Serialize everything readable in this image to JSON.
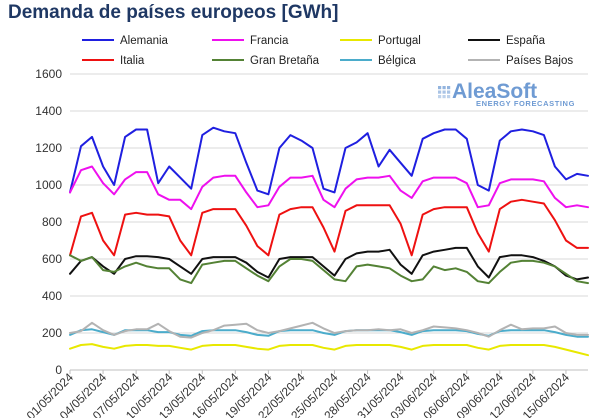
{
  "chart_data": {
    "type": "line",
    "title": "Demanda de países europeos [GWh]",
    "xlabel": "",
    "ylabel": "",
    "ylim": [
      0,
      1600
    ],
    "yticks": [
      0,
      200,
      400,
      600,
      800,
      1000,
      1200,
      1400,
      1600
    ],
    "grid": true,
    "legend_placement": "top",
    "x_tick_labels": [
      "01/05/2024",
      "04/05/2024",
      "07/05/2024",
      "10/05/2024",
      "13/05/2024",
      "16/05/2024",
      "19/05/2024",
      "22/05/2024",
      "25/05/2024",
      "28/05/2024",
      "31/05/2024",
      "03/06/2024",
      "06/06/2024",
      "09/06/2024",
      "12/06/2024",
      "15/06/2024"
    ],
    "x": [
      "01/05/2024",
      "02/05/2024",
      "03/05/2024",
      "04/05/2024",
      "05/05/2024",
      "06/05/2024",
      "07/05/2024",
      "08/05/2024",
      "09/05/2024",
      "10/05/2024",
      "11/05/2024",
      "12/05/2024",
      "13/05/2024",
      "14/05/2024",
      "15/05/2024",
      "16/05/2024",
      "17/05/2024",
      "18/05/2024",
      "19/05/2024",
      "20/05/2024",
      "21/05/2024",
      "22/05/2024",
      "23/05/2024",
      "24/05/2024",
      "25/05/2024",
      "26/05/2024",
      "27/05/2024",
      "28/05/2024",
      "29/05/2024",
      "30/05/2024",
      "31/05/2024",
      "01/06/2024",
      "02/06/2024",
      "03/06/2024",
      "04/06/2024",
      "05/06/2024",
      "06/06/2024",
      "07/06/2024",
      "08/06/2024",
      "09/06/2024",
      "10/06/2024",
      "11/06/2024",
      "12/06/2024",
      "13/06/2024",
      "14/06/2024",
      "15/06/2024",
      "16/06/2024",
      "17/06/2024"
    ],
    "series": [
      {
        "name": "Alemania",
        "color": "#1f1fe0",
        "values": [
          960,
          1210,
          1260,
          1100,
          1000,
          1260,
          1300,
          1300,
          1010,
          1100,
          1040,
          980,
          1270,
          1310,
          1290,
          1280,
          1120,
          970,
          950,
          1200,
          1270,
          1240,
          1200,
          980,
          960,
          1200,
          1230,
          1280,
          1100,
          1190,
          1120,
          1050,
          1250,
          1280,
          1300,
          1300,
          1250,
          1000,
          970,
          1240,
          1290,
          1300,
          1290,
          1270,
          1100,
          1030,
          1060,
          1050
        ]
      },
      {
        "name": "Francia",
        "color": "#ee10ee",
        "values": [
          960,
          1080,
          1100,
          1010,
          950,
          1030,
          1070,
          1070,
          950,
          920,
          920,
          870,
          990,
          1040,
          1050,
          1050,
          960,
          880,
          890,
          990,
          1040,
          1040,
          1050,
          920,
          880,
          980,
          1030,
          1040,
          1040,
          1050,
          970,
          930,
          1020,
          1040,
          1040,
          1040,
          1010,
          880,
          890,
          1010,
          1030,
          1030,
          1030,
          1020,
          930,
          880,
          890,
          880
        ]
      },
      {
        "name": "Portugal",
        "color": "#e8e800",
        "values": [
          115,
          135,
          140,
          125,
          115,
          130,
          135,
          135,
          130,
          130,
          120,
          110,
          130,
          135,
          135,
          135,
          125,
          115,
          110,
          130,
          135,
          135,
          135,
          120,
          110,
          130,
          135,
          135,
          135,
          135,
          125,
          110,
          130,
          135,
          135,
          135,
          135,
          120,
          110,
          130,
          135,
          135,
          135,
          135,
          125,
          110,
          95,
          80
        ]
      },
      {
        "name": "España",
        "color": "#111111",
        "values": [
          520,
          590,
          610,
          560,
          520,
          600,
          615,
          615,
          610,
          600,
          560,
          520,
          600,
          610,
          610,
          610,
          580,
          530,
          500,
          600,
          610,
          610,
          610,
          560,
          510,
          600,
          630,
          640,
          640,
          650,
          570,
          520,
          620,
          640,
          650,
          660,
          660,
          560,
          500,
          610,
          620,
          620,
          610,
          590,
          560,
          510,
          490,
          500
        ]
      },
      {
        "name": "Italia",
        "color": "#ee1111",
        "values": [
          620,
          830,
          850,
          700,
          620,
          840,
          850,
          840,
          840,
          830,
          700,
          620,
          850,
          870,
          870,
          870,
          780,
          670,
          620,
          840,
          870,
          880,
          880,
          770,
          640,
          860,
          890,
          890,
          890,
          890,
          790,
          620,
          840,
          870,
          880,
          880,
          880,
          740,
          640,
          870,
          910,
          920,
          910,
          900,
          810,
          700,
          660,
          660
        ]
      },
      {
        "name": "Gran Bretaña",
        "color": "#548235",
        "values": [
          620,
          590,
          610,
          540,
          530,
          560,
          580,
          560,
          550,
          550,
          490,
          470,
          570,
          580,
          590,
          590,
          550,
          510,
          480,
          560,
          600,
          600,
          590,
          540,
          490,
          480,
          560,
          570,
          560,
          550,
          510,
          480,
          490,
          560,
          540,
          550,
          530,
          480,
          470,
          530,
          580,
          590,
          590,
          580,
          560,
          520,
          480,
          470
        ]
      },
      {
        "name": "Bélgica",
        "color": "#4baccb",
        "values": [
          190,
          215,
          220,
          205,
          190,
          215,
          215,
          215,
          205,
          205,
          190,
          185,
          210,
          215,
          215,
          215,
          205,
          190,
          185,
          210,
          215,
          215,
          215,
          200,
          190,
          210,
          215,
          215,
          215,
          215,
          205,
          190,
          210,
          215,
          215,
          215,
          210,
          195,
          185,
          210,
          215,
          215,
          215,
          215,
          205,
          190,
          180,
          180
        ]
      },
      {
        "name": "Países Bajos",
        "color": "#b3b3b3",
        "values": [
          200,
          210,
          255,
          215,
          190,
          210,
          220,
          220,
          250,
          210,
          180,
          175,
          200,
          215,
          240,
          245,
          250,
          215,
          200,
          210,
          225,
          240,
          255,
          225,
          200,
          210,
          215,
          215,
          220,
          215,
          220,
          200,
          215,
          235,
          230,
          225,
          215,
          200,
          180,
          215,
          245,
          220,
          225,
          225,
          235,
          200,
          190,
          190
        ]
      }
    ]
  },
  "logo": {
    "name": "AleaSoft",
    "tagline": "ENERGY FORECASTING",
    "color": "#6f9bd3"
  }
}
